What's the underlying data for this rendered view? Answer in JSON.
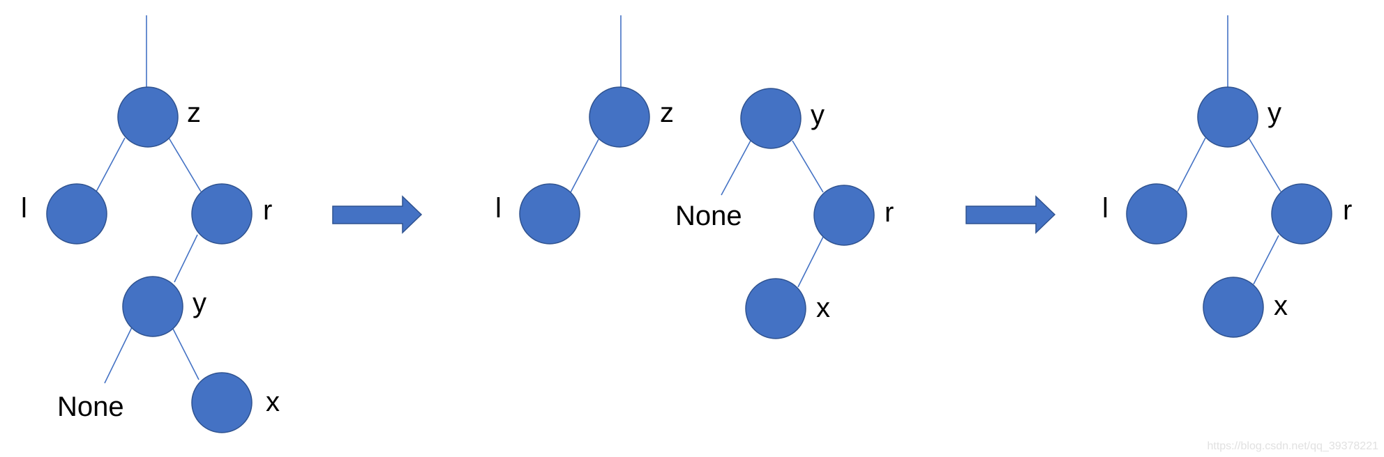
{
  "colors": {
    "node_fill": "#4472c4",
    "edge": "#4472c4",
    "arrow_fill": "#4472c4"
  },
  "panels": [
    {
      "nodes": [
        {
          "id": "z",
          "label": "z"
        },
        {
          "id": "l",
          "label": "l"
        },
        {
          "id": "r",
          "label": "r"
        },
        {
          "id": "y",
          "label": "y"
        },
        {
          "id": "x",
          "label": "x"
        }
      ],
      "null_leaves": [
        {
          "id": "none",
          "label": "None"
        }
      ]
    },
    {
      "nodes": [
        {
          "id": "z",
          "label": "z"
        },
        {
          "id": "l",
          "label": "l"
        },
        {
          "id": "y",
          "label": "y"
        },
        {
          "id": "r",
          "label": "r"
        },
        {
          "id": "x",
          "label": "x"
        }
      ],
      "null_leaves": [
        {
          "id": "none",
          "label": "None"
        }
      ]
    },
    {
      "nodes": [
        {
          "id": "y",
          "label": "y"
        },
        {
          "id": "l",
          "label": "l"
        },
        {
          "id": "r",
          "label": "r"
        },
        {
          "id": "x",
          "label": "x"
        }
      ],
      "null_leaves": []
    }
  ],
  "watermark": "https://blog.csdn.net/qq_39378221"
}
